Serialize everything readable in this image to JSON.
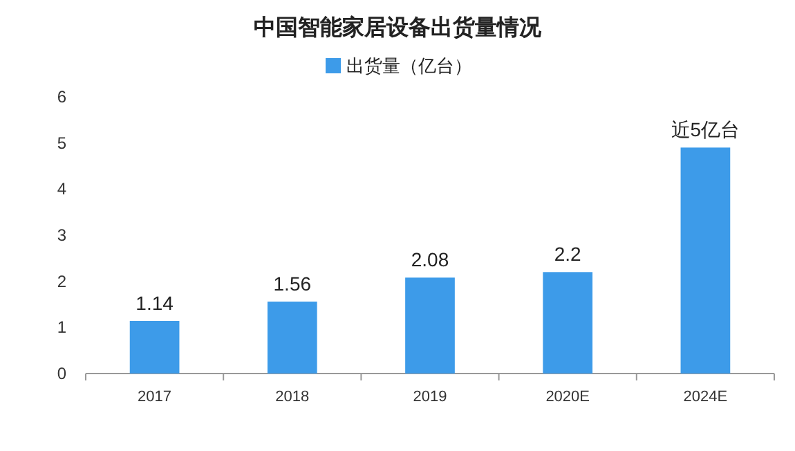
{
  "chart_data": {
    "type": "bar",
    "title": "中国智能家居设备出货量情况",
    "categories": [
      "2017",
      "2018",
      "2019",
      "2020E",
      "2024E"
    ],
    "series": [
      {
        "name": "出货量（亿台）",
        "color": "#3d9be9",
        "values": [
          1.14,
          1.56,
          2.08,
          2.2,
          4.9
        ],
        "value_labels": [
          "1.14",
          "1.56",
          "2.08",
          "2.2",
          "近5亿台"
        ]
      }
    ],
    "ylim": [
      0,
      6
    ],
    "yticks": [
      0,
      1,
      2,
      3,
      4,
      5,
      6
    ],
    "grid": false,
    "legend": "top"
  }
}
